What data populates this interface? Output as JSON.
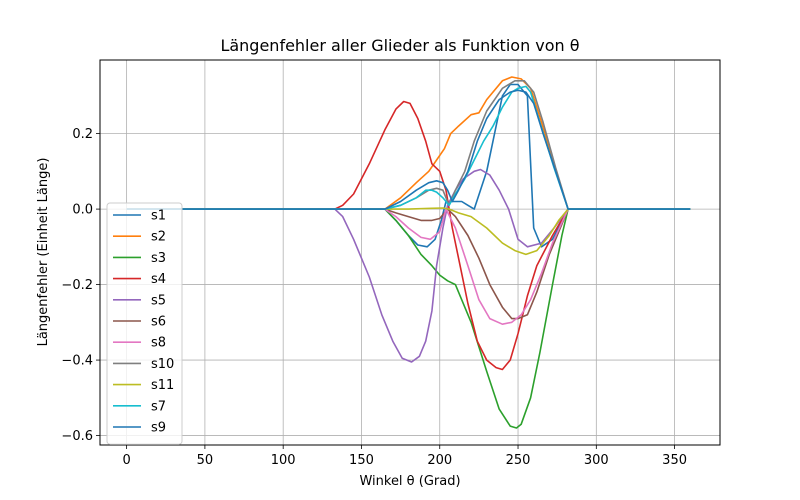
{
  "chart_data": {
    "type": "line",
    "title": "Längenfehler aller Glieder als Funktion von θ",
    "xlabel": "Winkel θ (Grad)",
    "ylabel": "Längenfehler (Einheit Länge)",
    "xlim": [
      -17,
      379
    ],
    "ylim": [
      -0.625,
      0.395
    ],
    "xticks": [
      0,
      50,
      100,
      150,
      200,
      250,
      300,
      350
    ],
    "yticks": [
      -0.6,
      -0.4,
      -0.2,
      0.0,
      0.2
    ],
    "xtick_labels": [
      "0",
      "50",
      "100",
      "150",
      "200",
      "250",
      "300",
      "350"
    ],
    "ytick_labels": [
      "−0.6",
      "−0.4",
      "−0.2",
      "0.0",
      "0.2"
    ],
    "grid": true,
    "legend": {
      "position": "center-left"
    },
    "series": [
      {
        "name": "s1",
        "color": "#1f77b4",
        "points": [
          [
            0,
            0
          ],
          [
            165,
            0
          ],
          [
            172,
            -0.03
          ],
          [
            180,
            -0.07
          ],
          [
            186,
            -0.095
          ],
          [
            192,
            -0.1
          ],
          [
            197,
            -0.08
          ],
          [
            201,
            -0.03
          ],
          [
            204,
            0.02
          ],
          [
            208,
            0.02
          ],
          [
            214,
            0.02
          ],
          [
            218,
            0.01
          ],
          [
            222,
            0
          ],
          [
            230,
            0.1
          ],
          [
            240,
            0.3
          ],
          [
            245,
            0.33
          ],
          [
            250,
            0.33
          ],
          [
            256,
            0.3
          ],
          [
            260,
            -0.05
          ],
          [
            265,
            -0.1
          ],
          [
            272,
            -0.08
          ],
          [
            282,
            0
          ],
          [
            360,
            0
          ]
        ]
      },
      {
        "name": "s2",
        "color": "#ff7f0e",
        "points": [
          [
            0,
            0
          ],
          [
            165,
            0
          ],
          [
            175,
            0.03
          ],
          [
            185,
            0.07
          ],
          [
            193,
            0.1
          ],
          [
            198,
            0.13
          ],
          [
            203,
            0.16
          ],
          [
            207,
            0.2
          ],
          [
            212,
            0.22
          ],
          [
            220,
            0.25
          ],
          [
            225,
            0.255
          ],
          [
            230,
            0.29
          ],
          [
            240,
            0.34
          ],
          [
            246,
            0.35
          ],
          [
            252,
            0.345
          ],
          [
            258,
            0.32
          ],
          [
            265,
            0.23
          ],
          [
            273,
            0.12
          ],
          [
            282,
            0
          ],
          [
            360,
            0
          ]
        ]
      },
      {
        "name": "s3",
        "color": "#2ca02c",
        "points": [
          [
            0,
            0
          ],
          [
            165,
            0
          ],
          [
            172,
            -0.03
          ],
          [
            180,
            -0.07
          ],
          [
            188,
            -0.12
          ],
          [
            195,
            -0.15
          ],
          [
            200,
            -0.175
          ],
          [
            205,
            -0.19
          ],
          [
            210,
            -0.2
          ],
          [
            220,
            -0.3
          ],
          [
            230,
            -0.43
          ],
          [
            238,
            -0.53
          ],
          [
            245,
            -0.575
          ],
          [
            249,
            -0.58
          ],
          [
            252,
            -0.57
          ],
          [
            258,
            -0.5
          ],
          [
            264,
            -0.38
          ],
          [
            272,
            -0.2
          ],
          [
            278,
            -0.07
          ],
          [
            282,
            0
          ],
          [
            360,
            0
          ]
        ]
      },
      {
        "name": "s4",
        "color": "#d62728",
        "points": [
          [
            0,
            0
          ],
          [
            133,
            0
          ],
          [
            138,
            0.01
          ],
          [
            145,
            0.04
          ],
          [
            155,
            0.12
          ],
          [
            165,
            0.21
          ],
          [
            172,
            0.265
          ],
          [
            177,
            0.285
          ],
          [
            181,
            0.28
          ],
          [
            186,
            0.24
          ],
          [
            191,
            0.18
          ],
          [
            195,
            0.12
          ],
          [
            200,
            0.1
          ],
          [
            204,
            0.05
          ],
          [
            208,
            -0.05
          ],
          [
            213,
            -0.15
          ],
          [
            218,
            -0.25
          ],
          [
            224,
            -0.35
          ],
          [
            230,
            -0.4
          ],
          [
            236,
            -0.42
          ],
          [
            240,
            -0.425
          ],
          [
            245,
            -0.4
          ],
          [
            250,
            -0.33
          ],
          [
            256,
            -0.23
          ],
          [
            262,
            -0.15
          ],
          [
            272,
            -0.07
          ],
          [
            282,
            0
          ],
          [
            360,
            0
          ]
        ]
      },
      {
        "name": "s5",
        "color": "#9467bd",
        "points": [
          [
            0,
            0
          ],
          [
            133,
            0
          ],
          [
            138,
            -0.02
          ],
          [
            145,
            -0.08
          ],
          [
            155,
            -0.18
          ],
          [
            163,
            -0.28
          ],
          [
            170,
            -0.35
          ],
          [
            176,
            -0.395
          ],
          [
            182,
            -0.405
          ],
          [
            187,
            -0.39
          ],
          [
            191,
            -0.35
          ],
          [
            195,
            -0.27
          ],
          [
            198,
            -0.15
          ],
          [
            202,
            -0.05
          ],
          [
            205,
            0.01
          ],
          [
            210,
            0.05
          ],
          [
            215,
            0.08
          ],
          [
            222,
            0.1
          ],
          [
            226,
            0.105
          ],
          [
            232,
            0.09
          ],
          [
            238,
            0.05
          ],
          [
            244,
            0
          ],
          [
            250,
            -0.08
          ],
          [
            256,
            -0.1
          ],
          [
            265,
            -0.09
          ],
          [
            273,
            -0.05
          ],
          [
            282,
            0
          ],
          [
            360,
            0
          ]
        ]
      },
      {
        "name": "s6",
        "color": "#8c564b",
        "points": [
          [
            0,
            0
          ],
          [
            165,
            0
          ],
          [
            172,
            -0.01
          ],
          [
            180,
            -0.02
          ],
          [
            188,
            -0.03
          ],
          [
            195,
            -0.03
          ],
          [
            200,
            -0.025
          ],
          [
            205,
            0
          ],
          [
            210,
            -0.02
          ],
          [
            218,
            -0.07
          ],
          [
            225,
            -0.13
          ],
          [
            232,
            -0.2
          ],
          [
            240,
            -0.26
          ],
          [
            246,
            -0.29
          ],
          [
            250,
            -0.29
          ],
          [
            256,
            -0.28
          ],
          [
            262,
            -0.22
          ],
          [
            270,
            -0.12
          ],
          [
            278,
            -0.04
          ],
          [
            282,
            0
          ],
          [
            360,
            0
          ]
        ]
      },
      {
        "name": "s8",
        "color": "#e377c2",
        "points": [
          [
            0,
            0
          ],
          [
            165,
            0
          ],
          [
            172,
            -0.02
          ],
          [
            180,
            -0.05
          ],
          [
            188,
            -0.075
          ],
          [
            194,
            -0.08
          ],
          [
            200,
            -0.06
          ],
          [
            204,
            0
          ],
          [
            210,
            -0.05
          ],
          [
            218,
            -0.15
          ],
          [
            225,
            -0.24
          ],
          [
            232,
            -0.29
          ],
          [
            240,
            -0.305
          ],
          [
            246,
            -0.3
          ],
          [
            252,
            -0.28
          ],
          [
            258,
            -0.24
          ],
          [
            265,
            -0.17
          ],
          [
            272,
            -0.09
          ],
          [
            282,
            0
          ],
          [
            360,
            0
          ]
        ]
      },
      {
        "name": "s10",
        "color": "#7f7f7f",
        "points": [
          [
            0,
            0
          ],
          [
            165,
            0
          ],
          [
            175,
            0.01
          ],
          [
            185,
            0.03
          ],
          [
            193,
            0.05
          ],
          [
            198,
            0.055
          ],
          [
            202,
            0.05
          ],
          [
            206,
            0.01
          ],
          [
            210,
            0.05
          ],
          [
            216,
            0.1
          ],
          [
            222,
            0.18
          ],
          [
            230,
            0.26
          ],
          [
            240,
            0.32
          ],
          [
            248,
            0.34
          ],
          [
            254,
            0.34
          ],
          [
            260,
            0.31
          ],
          [
            266,
            0.23
          ],
          [
            274,
            0.11
          ],
          [
            282,
            0
          ],
          [
            360,
            0
          ]
        ]
      },
      {
        "name": "s11",
        "color": "#bcbd22",
        "points": [
          [
            0,
            0
          ],
          [
            180,
            0
          ],
          [
            195,
            0.002
          ],
          [
            202,
            0.003
          ],
          [
            206,
            0
          ],
          [
            212,
            -0.01
          ],
          [
            220,
            -0.02
          ],
          [
            230,
            -0.05
          ],
          [
            240,
            -0.09
          ],
          [
            248,
            -0.11
          ],
          [
            255,
            -0.12
          ],
          [
            262,
            -0.11
          ],
          [
            270,
            -0.07
          ],
          [
            276,
            -0.03
          ],
          [
            282,
            0
          ],
          [
            360,
            0
          ]
        ]
      },
      {
        "name": "s7",
        "color": "#17becf",
        "points": [
          [
            0,
            0
          ],
          [
            165,
            0
          ],
          [
            175,
            0.01
          ],
          [
            185,
            0.03
          ],
          [
            191,
            0.05
          ],
          [
            195,
            0.05
          ],
          [
            198,
            0.045
          ],
          [
            202,
            0.03
          ],
          [
            206,
            0.01
          ],
          [
            210,
            0.04
          ],
          [
            216,
            0.08
          ],
          [
            222,
            0.13
          ],
          [
            228,
            0.18
          ],
          [
            234,
            0.22
          ],
          [
            240,
            0.27
          ],
          [
            246,
            0.31
          ],
          [
            250,
            0.32
          ],
          [
            255,
            0.325
          ],
          [
            258,
            0.31
          ],
          [
            264,
            0.23
          ],
          [
            273,
            0.11
          ],
          [
            282,
            0
          ],
          [
            360,
            0
          ]
        ]
      },
      {
        "name": "s9",
        "color": "#1f77b4",
        "points": [
          [
            0,
            0
          ],
          [
            165,
            0
          ],
          [
            175,
            0.02
          ],
          [
            185,
            0.05
          ],
          [
            193,
            0.07
          ],
          [
            198,
            0.075
          ],
          [
            202,
            0.07
          ],
          [
            205,
            0.05
          ],
          [
            208,
            0.02
          ],
          [
            212,
            0.05
          ],
          [
            218,
            0.1
          ],
          [
            224,
            0.18
          ],
          [
            230,
            0.24
          ],
          [
            238,
            0.29
          ],
          [
            245,
            0.31
          ],
          [
            250,
            0.315
          ],
          [
            255,
            0.31
          ],
          [
            260,
            0.28
          ],
          [
            266,
            0.2
          ],
          [
            274,
            0.1
          ],
          [
            282,
            0
          ],
          [
            360,
            0
          ]
        ]
      }
    ]
  }
}
